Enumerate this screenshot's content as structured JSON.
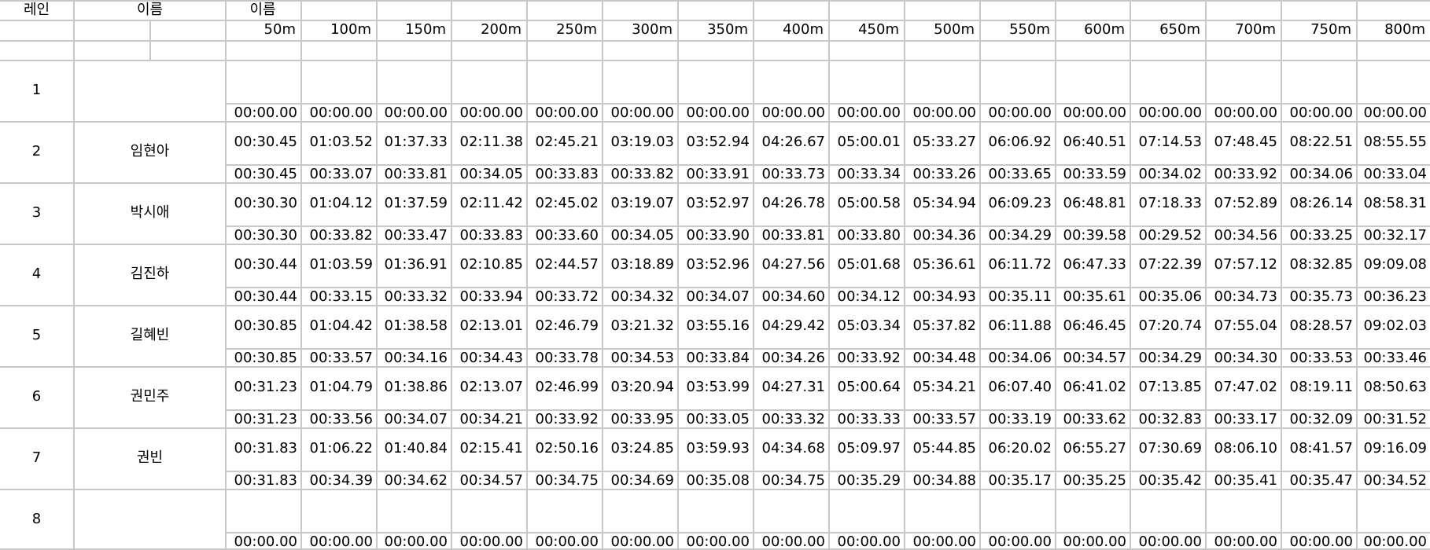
{
  "headers": {
    "lane": "레인",
    "name": "이름",
    "name2": "이름",
    "distances": [
      "50m",
      "100m",
      "150m",
      "200m",
      "250m",
      "300m",
      "350m",
      "400m",
      "450m",
      "500m",
      "550m",
      "600m",
      "650m",
      "700m",
      "750m",
      "800m"
    ]
  },
  "rows": [
    {
      "lane": "1",
      "name": "",
      "cumulative": [],
      "splits": [
        "00:00.00",
        "00:00.00",
        "00:00.00",
        "00:00.00",
        "00:00.00",
        "00:00.00",
        "00:00.00",
        "00:00.00",
        "00:00.00",
        "00:00.00",
        "00:00.00",
        "00:00.00",
        "00:00.00",
        "00:00.00",
        "00:00.00",
        "00:00.00"
      ]
    },
    {
      "lane": "2",
      "name": "임현아",
      "cumulative": [
        "00:30.45",
        "01:03.52",
        "01:37.33",
        "02:11.38",
        "02:45.21",
        "03:19.03",
        "03:52.94",
        "04:26.67",
        "05:00.01",
        "05:33.27",
        "06:06.92",
        "06:40.51",
        "07:14.53",
        "07:48.45",
        "08:22.51",
        "08:55.55"
      ],
      "splits": [
        "00:30.45",
        "00:33.07",
        "00:33.81",
        "00:34.05",
        "00:33.83",
        "00:33.82",
        "00:33.91",
        "00:33.73",
        "00:33.34",
        "00:33.26",
        "00:33.65",
        "00:33.59",
        "00:34.02",
        "00:33.92",
        "00:34.06",
        "00:33.04"
      ]
    },
    {
      "lane": "3",
      "name": "박시애",
      "cumulative": [
        "00:30.30",
        "01:04.12",
        "01:37.59",
        "02:11.42",
        "02:45.02",
        "03:19.07",
        "03:52.97",
        "04:26.78",
        "05:00.58",
        "05:34.94",
        "06:09.23",
        "06:48.81",
        "07:18.33",
        "07:52.89",
        "08:26.14",
        "08:58.31"
      ],
      "splits": [
        "00:30.30",
        "00:33.82",
        "00:33.47",
        "00:33.83",
        "00:33.60",
        "00:34.05",
        "00:33.90",
        "00:33.81",
        "00:33.80",
        "00:34.36",
        "00:34.29",
        "00:39.58",
        "00:29.52",
        "00:34.56",
        "00:33.25",
        "00:32.17"
      ]
    },
    {
      "lane": "4",
      "name": "김진하",
      "cumulative": [
        "00:30.44",
        "01:03.59",
        "01:36.91",
        "02:10.85",
        "02:44.57",
        "03:18.89",
        "03:52.96",
        "04:27.56",
        "05:01.68",
        "05:36.61",
        "06:11.72",
        "06:47.33",
        "07:22.39",
        "07:57.12",
        "08:32.85",
        "09:09.08"
      ],
      "splits": [
        "00:30.44",
        "00:33.15",
        "00:33.32",
        "00:33.94",
        "00:33.72",
        "00:34.32",
        "00:34.07",
        "00:34.60",
        "00:34.12",
        "00:34.93",
        "00:35.11",
        "00:35.61",
        "00:35.06",
        "00:34.73",
        "00:35.73",
        "00:36.23"
      ]
    },
    {
      "lane": "5",
      "name": "길혜빈",
      "cumulative": [
        "00:30.85",
        "01:04.42",
        "01:38.58",
        "02:13.01",
        "02:46.79",
        "03:21.32",
        "03:55.16",
        "04:29.42",
        "05:03.34",
        "05:37.82",
        "06:11.88",
        "06:46.45",
        "07:20.74",
        "07:55.04",
        "08:28.57",
        "09:02.03"
      ],
      "splits": [
        "00:30.85",
        "00:33.57",
        "00:34.16",
        "00:34.43",
        "00:33.78",
        "00:34.53",
        "00:33.84",
        "00:34.26",
        "00:33.92",
        "00:34.48",
        "00:34.06",
        "00:34.57",
        "00:34.29",
        "00:34.30",
        "00:33.53",
        "00:33.46"
      ]
    },
    {
      "lane": "6",
      "name": "권민주",
      "cumulative": [
        "00:31.23",
        "01:04.79",
        "01:38.86",
        "02:13.07",
        "02:46.99",
        "03:20.94",
        "03:53.99",
        "04:27.31",
        "05:00.64",
        "05:34.21",
        "06:07.40",
        "06:41.02",
        "07:13.85",
        "07:47.02",
        "08:19.11",
        "08:50.63"
      ],
      "splits": [
        "00:31.23",
        "00:33.56",
        "00:34.07",
        "00:34.21",
        "00:33.92",
        "00:33.95",
        "00:33.05",
        "00:33.32",
        "00:33.33",
        "00:33.57",
        "00:33.19",
        "00:33.62",
        "00:32.83",
        "00:33.17",
        "00:32.09",
        "00:31.52"
      ]
    },
    {
      "lane": "7",
      "name": "권빈",
      "cumulative": [
        "00:31.83",
        "01:06.22",
        "01:40.84",
        "02:15.41",
        "02:50.16",
        "03:24.85",
        "03:59.93",
        "04:34.68",
        "05:09.97",
        "05:44.85",
        "06:20.02",
        "06:55.27",
        "07:30.69",
        "08:06.10",
        "08:41.57",
        "09:16.09"
      ],
      "splits": [
        "00:31.83",
        "00:34.39",
        "00:34.62",
        "00:34.57",
        "00:34.75",
        "00:34.69",
        "00:35.08",
        "00:34.75",
        "00:35.29",
        "00:34.88",
        "00:35.17",
        "00:35.25",
        "00:35.42",
        "00:35.41",
        "00:35.47",
        "00:34.52"
      ]
    },
    {
      "lane": "8",
      "name": "",
      "cumulative": [],
      "splits": [
        "00:00.00",
        "00:00.00",
        "00:00.00",
        "00:00.00",
        "00:00.00",
        "00:00.00",
        "00:00.00",
        "00:00.00",
        "00:00.00",
        "00:00.00",
        "00:00.00",
        "00:00.00",
        "00:00.00",
        "00:00.00",
        "00:00.00",
        "00:00.00"
      ]
    }
  ]
}
